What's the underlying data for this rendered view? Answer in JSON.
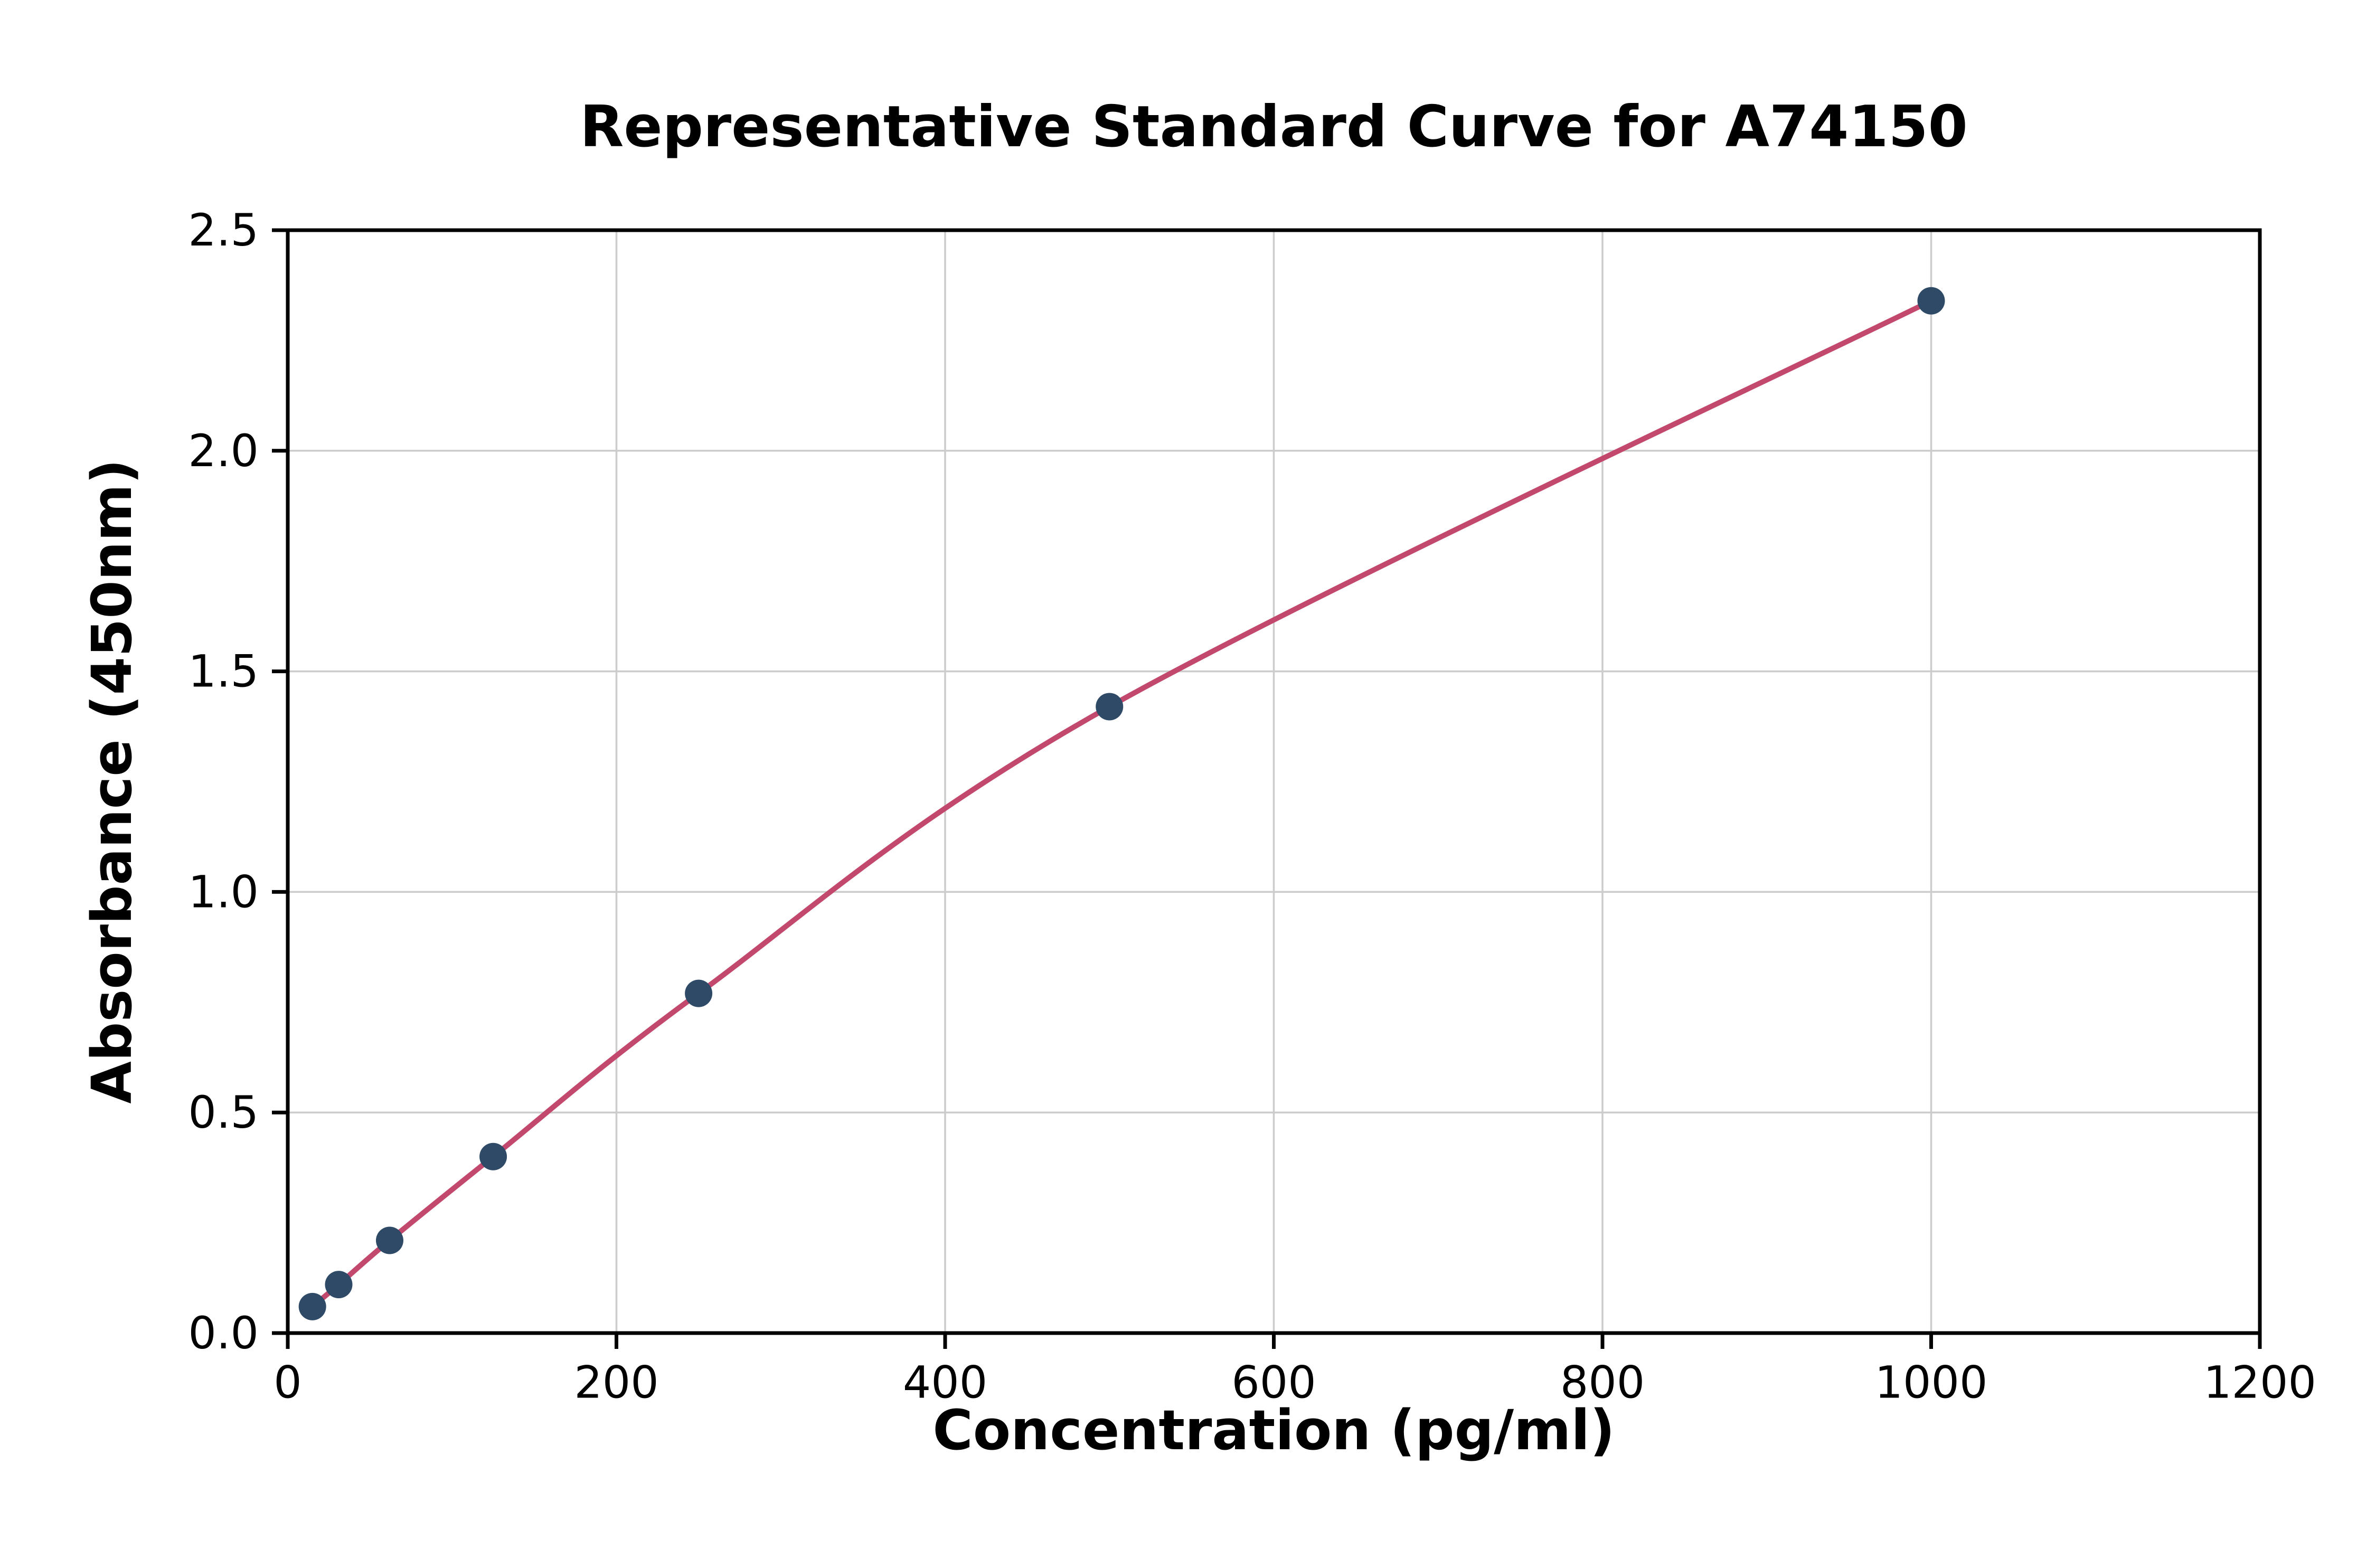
{
  "chart_data": {
    "type": "scatter",
    "title": "Representative Standard Curve for A74150",
    "xlabel": "Concentration (pg/ml)",
    "ylabel": "Absorbance (450nm)",
    "xlim": [
      0,
      1200
    ],
    "ylim": [
      0,
      2.5
    ],
    "x_ticks": [
      0,
      200,
      400,
      600,
      800,
      1000,
      1200
    ],
    "x_tick_labels": [
      "0",
      "200",
      "400",
      "600",
      "800",
      "1000",
      "1200"
    ],
    "y_ticks": [
      0,
      0.5,
      1.0,
      1.5,
      2.0,
      2.5
    ],
    "y_tick_labels": [
      "0.0",
      "0.5",
      "1.0",
      "1.5",
      "2.0",
      "2.5"
    ],
    "grid": true,
    "legend": "none",
    "points": [
      {
        "x": 15,
        "y": 0.06
      },
      {
        "x": 31,
        "y": 0.11
      },
      {
        "x": 62,
        "y": 0.21
      },
      {
        "x": 125,
        "y": 0.4
      },
      {
        "x": 250,
        "y": 0.77
      },
      {
        "x": 500,
        "y": 1.42
      },
      {
        "x": 1000,
        "y": 2.34
      }
    ],
    "colors": {
      "curve": "#c2496d",
      "points": "#2e4a66",
      "grid": "#cccccc",
      "axes": "#000000",
      "background": "#ffffff"
    }
  }
}
